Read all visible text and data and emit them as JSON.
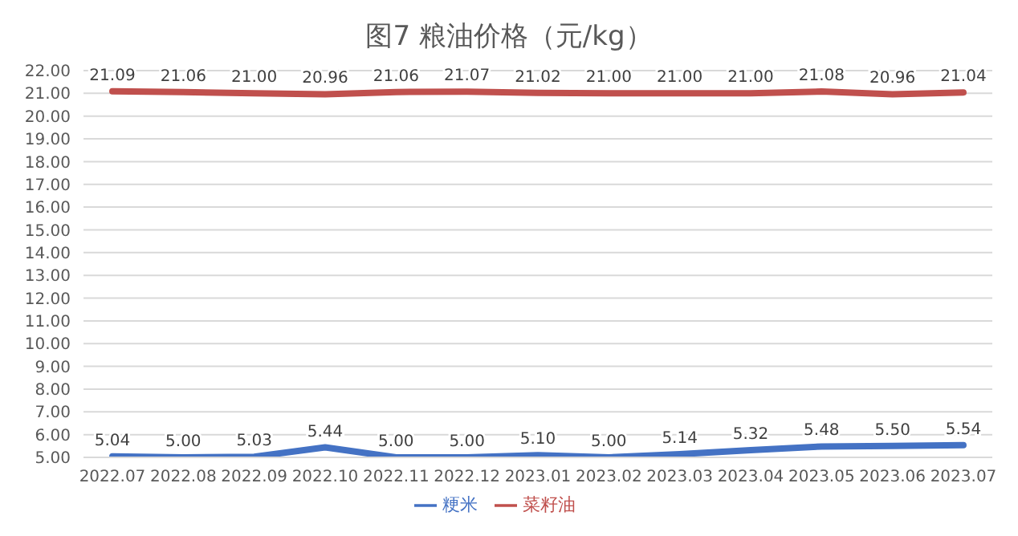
{
  "chart_data": {
    "type": "line",
    "title": "图7  粮油价格（元/kg）",
    "categories": [
      "2022.07",
      "2022.08",
      "2022.09",
      "2022.10",
      "2022.11",
      "2022.12",
      "2023.01",
      "2023.02",
      "2023.03",
      "2023.04",
      "2023.05",
      "2023.06",
      "2023.07"
    ],
    "series": [
      {
        "name": "粳米",
        "color": "#4472c4",
        "values": [
          5.04,
          5.0,
          5.03,
          5.44,
          5.0,
          5.0,
          5.1,
          5.0,
          5.14,
          5.32,
          5.48,
          5.5,
          5.54
        ],
        "value_labels": [
          "5.04",
          "5.00",
          "5.03",
          "5.44",
          "5.00",
          "5.00",
          "5.10",
          "5.00",
          "5.14",
          "5.32",
          "5.48",
          "5.50",
          "5.54"
        ]
      },
      {
        "name": "菜籽油",
        "color": "#c0504d",
        "values": [
          21.09,
          21.06,
          21.0,
          20.96,
          21.06,
          21.07,
          21.02,
          21.0,
          21.0,
          21.0,
          21.08,
          20.96,
          21.04
        ],
        "value_labels": [
          "21.09",
          "21.06",
          "21.00",
          "20.96",
          "21.06",
          "21.07",
          "21.02",
          "21.00",
          "21.00",
          "21.00",
          "21.08",
          "20.96",
          "21.04"
        ]
      }
    ],
    "ylim": [
      5,
      22
    ],
    "yticks": [
      {
        "value": 5,
        "label": "5.00"
      },
      {
        "value": 6,
        "label": "6.00"
      },
      {
        "value": 7,
        "label": "7.00"
      },
      {
        "value": 8,
        "label": "8.00"
      },
      {
        "value": 9,
        "label": "9.00"
      },
      {
        "value": 10,
        "label": "10.00"
      },
      {
        "value": 11,
        "label": "11.00"
      },
      {
        "value": 12,
        "label": "12.00"
      },
      {
        "value": 13,
        "label": "13.00"
      },
      {
        "value": 14,
        "label": "14.00"
      },
      {
        "value": 15,
        "label": "15.00"
      },
      {
        "value": 16,
        "label": "16.00"
      },
      {
        "value": 17,
        "label": "17.00"
      },
      {
        "value": 18,
        "label": "18.00"
      },
      {
        "value": 19,
        "label": "19.00"
      },
      {
        "value": 20,
        "label": "20.00"
      },
      {
        "value": 21,
        "label": "21.00"
      },
      {
        "value": 22,
        "label": "22.00"
      }
    ],
    "grid": "y",
    "legend": "bottom",
    "marker": "none",
    "line_style": "solid"
  }
}
